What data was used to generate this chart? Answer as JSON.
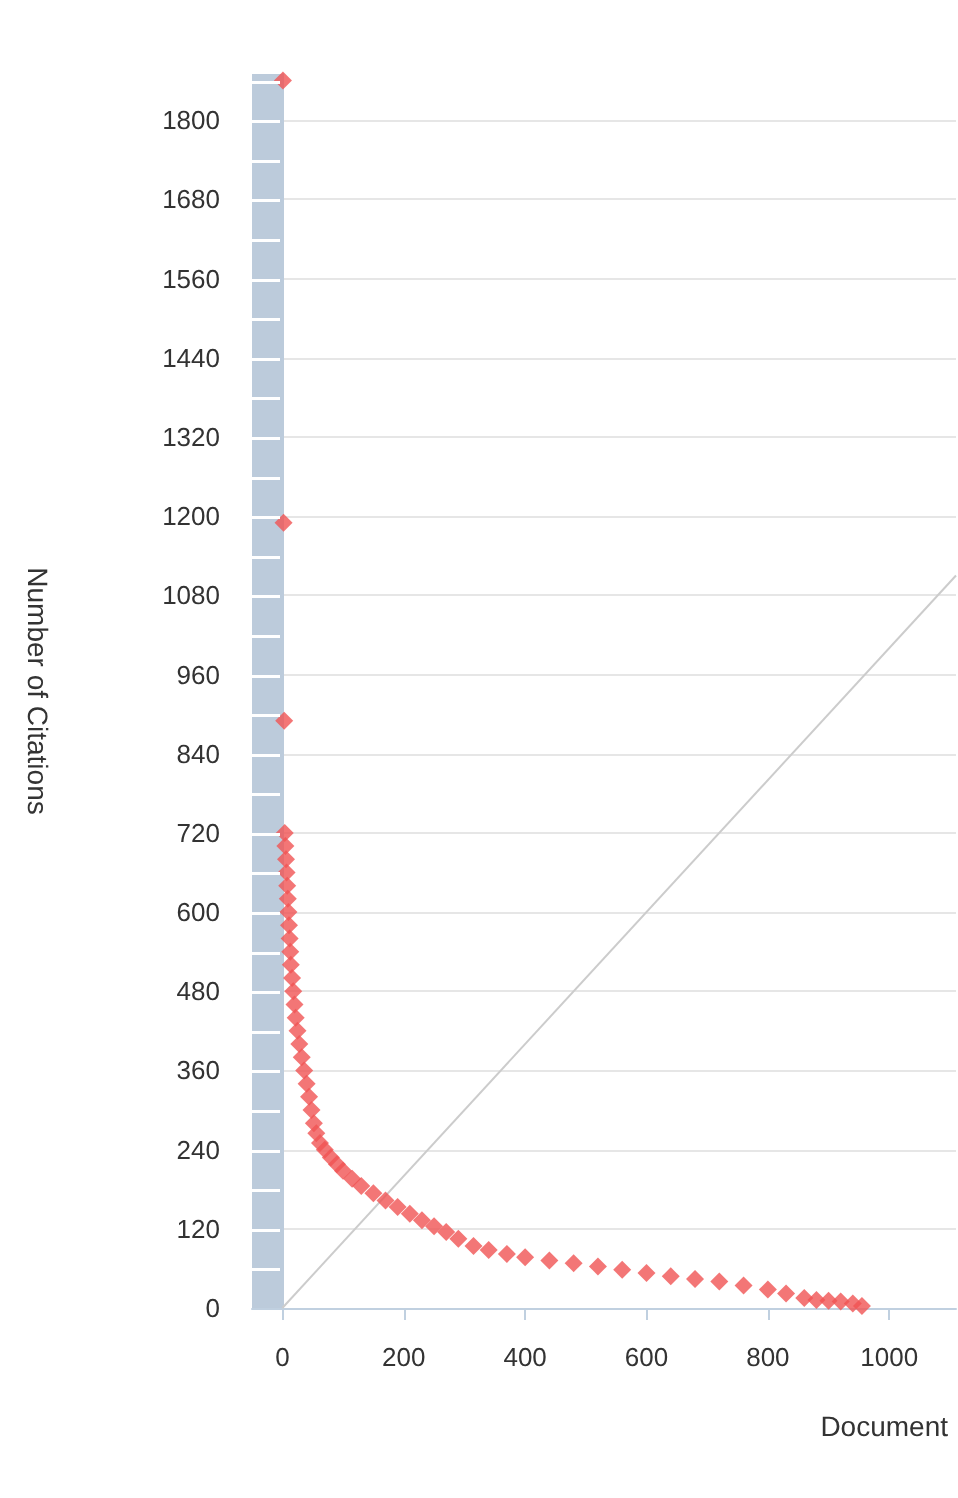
{
  "chart_data": {
    "type": "scatter",
    "xlabel": "Document",
    "ylabel": "Number of Citations",
    "xlim": [
      -50,
      1110
    ],
    "ylim": [
      0,
      1870
    ],
    "xticks": [
      0,
      200,
      400,
      600,
      800,
      1000
    ],
    "yticks": [
      0,
      120,
      240,
      360,
      480,
      600,
      720,
      840,
      960,
      1080,
      1200,
      1320,
      1440,
      1560,
      1680,
      1800
    ],
    "grid": "y",
    "marker": "diamond",
    "bands": [
      {
        "axis": "x",
        "from": -50,
        "to": 0,
        "color": "#bccbdb"
      }
    ],
    "series": [
      {
        "type": "line",
        "color": "#cccccc",
        "marker": "none",
        "x": [
          0,
          1110
        ],
        "values": [
          0,
          1110
        ]
      },
      {
        "color": "#f05454",
        "x": [
          1,
          2,
          3,
          4,
          5,
          6,
          7,
          8,
          9,
          10,
          11,
          12,
          13,
          14,
          16,
          18,
          20,
          22,
          25,
          28,
          32,
          36,
          40,
          44,
          48,
          52,
          56,
          62,
          70,
          80,
          90,
          100,
          115,
          130,
          150,
          170,
          190,
          210,
          230,
          250,
          270,
          290,
          315,
          340,
          370,
          400,
          440,
          480,
          520,
          560,
          600,
          640,
          680,
          720,
          760,
          800,
          830,
          860,
          880,
          900,
          920,
          940,
          955
        ],
        "values": [
          1860,
          1190,
          890,
          720,
          700,
          680,
          660,
          640,
          620,
          600,
          580,
          560,
          540,
          520,
          500,
          480,
          460,
          440,
          420,
          400,
          380,
          360,
          340,
          320,
          300,
          280,
          265,
          250,
          240,
          228,
          218,
          208,
          196,
          185,
          174,
          163,
          153,
          143,
          133,
          124,
          115,
          105,
          94,
          88,
          82,
          77,
          72,
          68,
          63,
          58,
          53,
          48,
          44,
          40,
          34,
          28,
          22,
          15,
          12,
          11,
          10,
          7,
          3
        ]
      }
    ]
  }
}
